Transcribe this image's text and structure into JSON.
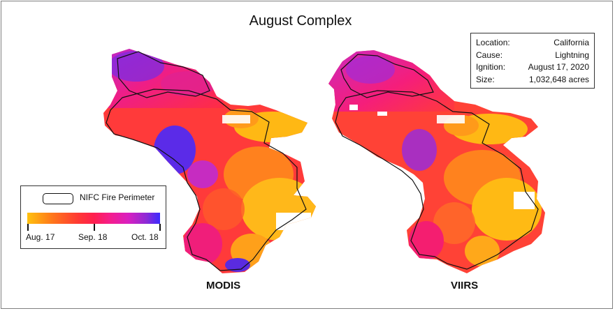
{
  "title": "August Complex",
  "info": [
    {
      "label": "Location:",
      "value": "California"
    },
    {
      "label": "Cause:",
      "value": "Lightning"
    },
    {
      "label": "Ignition:",
      "value": "August 17, 2020"
    },
    {
      "label": "Size:",
      "value": "1,032,648 acres"
    }
  ],
  "maps": [
    {
      "label": "MODIS"
    },
    {
      "label": "VIIRS"
    }
  ],
  "legend": {
    "perimeter_label": "NIFC Fire Perimeter",
    "ramp_colors": [
      "#ffc20e",
      "#ff3a33",
      "#f51e8a",
      "#d91fc0",
      "#3b2bff"
    ],
    "ticks": [
      "Aug. 17",
      "Sep. 18",
      "Oct. 18"
    ]
  }
}
